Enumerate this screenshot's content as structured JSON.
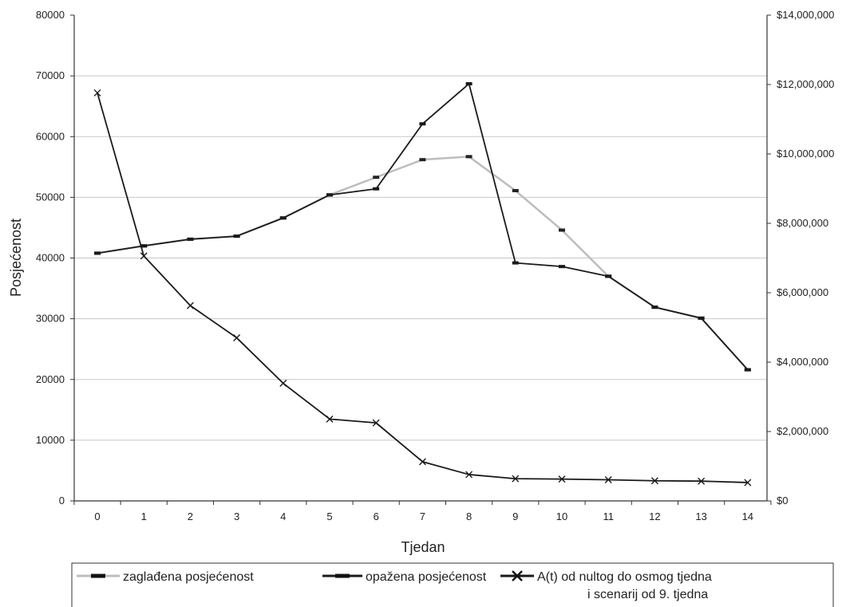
{
  "chart_data": {
    "type": "line",
    "xlabel": "Tjedan",
    "ylabel": "Posjećenost",
    "x": [
      0,
      1,
      2,
      3,
      4,
      5,
      6,
      7,
      8,
      9,
      10,
      11,
      12,
      13,
      14
    ],
    "ylim": [
      0,
      80000
    ],
    "y_ticks": [
      "0",
      "10000",
      "20000",
      "30000",
      "40000",
      "50000",
      "60000",
      "70000",
      "80000"
    ],
    "y2lim": [
      0,
      14000000
    ],
    "y2_ticks": [
      "$0",
      "$2,000,000",
      "$4,000,000",
      "$6,000,000",
      "$8,000,000",
      "$10,000,000",
      "$12,000,000",
      "$14,000,000"
    ],
    "grid": true,
    "legend_position": "bottom",
    "series": [
      {
        "name": "zaglađena posjećenost",
        "axis": "left",
        "color": "#bdbdbd",
        "values": [
          40800,
          42000,
          43100,
          43600,
          46600,
          50400,
          53300,
          56200,
          56700,
          51100,
          44600,
          37000,
          31900,
          30100,
          21600
        ]
      },
      {
        "name": "opažena posjećenost",
        "axis": "left",
        "color": "#1a1a1a",
        "values": [
          40800,
          42000,
          43100,
          43600,
          46600,
          50400,
          51400,
          62100,
          68700,
          39200,
          38600,
          37000,
          31900,
          30100,
          21600
        ]
      },
      {
        "name": "A(t) od nultog do osmog tjedna i scenarij od 9. tjedna",
        "legend_lines": [
          "A(t) od nultog do osmog tjedna",
          "i scenarij od 9. tjedna"
        ],
        "axis": "right",
        "color": "#1a1a1a",
        "values": [
          11760000,
          7060000,
          5630000,
          4700000,
          3390000,
          2360000,
          2250000,
          1130000,
          760000,
          640000,
          630000,
          610000,
          580000,
          570000,
          530000
        ]
      }
    ]
  }
}
